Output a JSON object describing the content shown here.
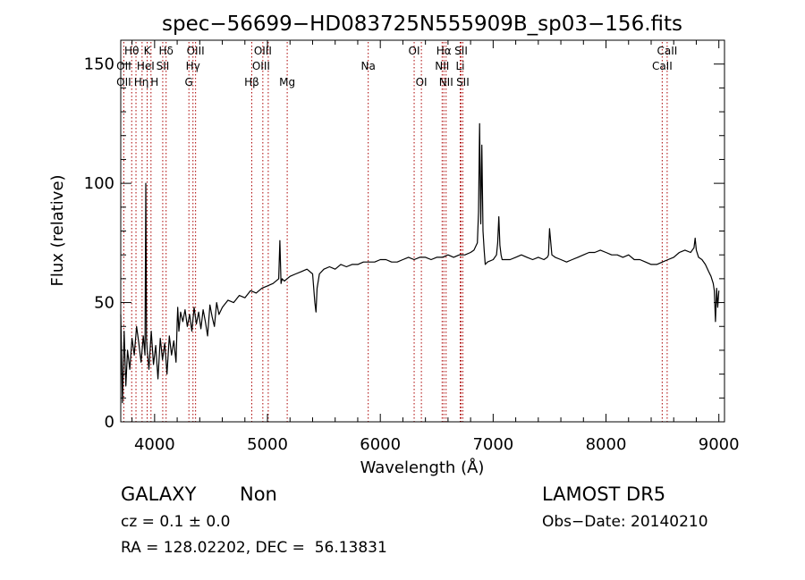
{
  "chart_data": {
    "type": "line",
    "title": "spec−56699−HD083725N555909B_sp03−156.fits",
    "xlabel": "Wavelength (Å)",
    "ylabel": "Flux (relative)",
    "xlim": [
      3700,
      9050
    ],
    "ylim": [
      0,
      160
    ],
    "xticks": [
      4000,
      5000,
      6000,
      7000,
      8000,
      9000
    ],
    "yticks": [
      0,
      50,
      100,
      150
    ],
    "grid": false,
    "series": [
      {
        "x": [
          3700,
          3715,
          3730,
          3745,
          3760,
          3780,
          3800,
          3820,
          3840,
          3860,
          3880,
          3900,
          3915,
          3922,
          3928,
          3935,
          3950,
          3970,
          3990,
          4010,
          4030,
          4050,
          4070,
          4090,
          4110,
          4130,
          4150,
          4170,
          4190,
          4200,
          4205,
          4215,
          4230,
          4250,
          4270,
          4290,
          4310,
          4330,
          4350,
          4370,
          4390,
          4410,
          4430,
          4450,
          4470,
          4490,
          4510,
          4530,
          4550,
          4570,
          4600,
          4650,
          4700,
          4750,
          4800,
          4850,
          4900,
          4950,
          5000,
          5050,
          5100,
          5110,
          5120,
          5130,
          5150,
          5200,
          5250,
          5300,
          5350,
          5400,
          5420,
          5430,
          5440,
          5460,
          5500,
          5550,
          5600,
          5650,
          5700,
          5750,
          5800,
          5850,
          5900,
          5950,
          6000,
          6050,
          6100,
          6150,
          6200,
          6250,
          6300,
          6350,
          6400,
          6450,
          6500,
          6550,
          6600,
          6650,
          6700,
          6750,
          6800,
          6830,
          6860,
          6870,
          6880,
          6890,
          6900,
          6910,
          6920,
          6930,
          6950,
          7000,
          7030,
          7040,
          7050,
          7060,
          7070,
          7080,
          7100,
          7150,
          7200,
          7250,
          7300,
          7350,
          7400,
          7450,
          7480,
          7490,
          7500,
          7520,
          7550,
          7600,
          7650,
          7700,
          7750,
          7800,
          7850,
          7900,
          7950,
          8000,
          8050,
          8100,
          8150,
          8200,
          8250,
          8300,
          8350,
          8400,
          8450,
          8500,
          8550,
          8600,
          8650,
          8700,
          8750,
          8780,
          8790,
          8800,
          8820,
          8850,
          8880,
          8910,
          8930,
          8950,
          8960,
          8970,
          8980,
          8990,
          9000
        ],
        "y": [
          45,
          8,
          38,
          15,
          30,
          22,
          35,
          28,
          40,
          33,
          25,
          36,
          28,
          100,
          35,
          30,
          22,
          38,
          24,
          32,
          18,
          35,
          26,
          33,
          20,
          36,
          28,
          34,
          25,
          42,
          48,
          38,
          46,
          42,
          47,
          40,
          45,
          38,
          48,
          41,
          46,
          39,
          47,
          42,
          36,
          49,
          44,
          40,
          50,
          45,
          48,
          51,
          50,
          53,
          52,
          55,
          54,
          56,
          57,
          58,
          60,
          76,
          58,
          60,
          59,
          61,
          62,
          63,
          64,
          62,
          50,
          46,
          56,
          62,
          64,
          65,
          64,
          66,
          65,
          66,
          66,
          67,
          67,
          67,
          68,
          68,
          67,
          67,
          68,
          69,
          68,
          69,
          69,
          68,
          69,
          69,
          70,
          69,
          70,
          70,
          71,
          72,
          75,
          88,
          125,
          83,
          116,
          80,
          72,
          66,
          67,
          68,
          70,
          75,
          86,
          74,
          70,
          68,
          68,
          68,
          69,
          70,
          69,
          68,
          69,
          68,
          69,
          70,
          81,
          70,
          69,
          68,
          67,
          68,
          69,
          70,
          71,
          71,
          72,
          71,
          70,
          70,
          69,
          70,
          68,
          68,
          67,
          66,
          66,
          67,
          68,
          69,
          71,
          72,
          71,
          73,
          77,
          72,
          69,
          68,
          66,
          63,
          61,
          58,
          55,
          42,
          56,
          48,
          55
        ]
      }
    ],
    "lines": [
      {
        "label": "OII",
        "wave": 3727,
        "row": 2,
        "dx": 0
      },
      {
        "label": "OII",
        "wave": 3727,
        "row": 3,
        "dx": 0
      },
      {
        "label": "Hθ",
        "wave": 3797,
        "row": 1,
        "dx": 0
      },
      {
        "label": "Hη",
        "wave": 3835,
        "row": 3,
        "dx": 6
      },
      {
        "label": "HeI",
        "wave": 3889,
        "row": 2,
        "dx": 4
      },
      {
        "label": "K",
        "wave": 3934,
        "row": 1,
        "dx": 0
      },
      {
        "label": "H",
        "wave": 3968,
        "row": 3,
        "dx": 4
      },
      {
        "label": "Hδ",
        "wave": 4102,
        "row": 1,
        "dx": 0
      },
      {
        "label": "SII",
        "wave": 4072,
        "row": 2,
        "dx": 0
      },
      {
        "label": "OIII",
        "wave": 4363,
        "row": 1,
        "dx": 0
      },
      {
        "label": "Hγ",
        "wave": 4340,
        "row": 2,
        "dx": 0
      },
      {
        "label": "G",
        "wave": 4304,
        "row": 3,
        "dx": 0
      },
      {
        "label": "OIII",
        "wave": 4959,
        "row": 1,
        "dx": 0
      },
      {
        "label": "OIII",
        "wave": 5007,
        "row": 2,
        "dx": -8
      },
      {
        "label": "Hβ",
        "wave": 4861,
        "row": 3,
        "dx": 0
      },
      {
        "label": "Mg",
        "wave": 5175,
        "row": 3,
        "dx": 0
      },
      {
        "label": "Na",
        "wave": 5893,
        "row": 2,
        "dx": 0
      },
      {
        "label": "OI",
        "wave": 6300,
        "row": 1,
        "dx": 0
      },
      {
        "label": "OI",
        "wave": 6364,
        "row": 3,
        "dx": 0
      },
      {
        "label": "Hα",
        "wave": 6563,
        "row": 1,
        "dx": 0
      },
      {
        "label": "NII",
        "wave": 6548,
        "row": 2,
        "dx": 0
      },
      {
        "label": "NII",
        "wave": 6583,
        "row": 3,
        "dx": 0
      },
      {
        "label": "SII",
        "wave": 6716,
        "row": 1,
        "dx": 0
      },
      {
        "label": "Li",
        "wave": 6708,
        "row": 2,
        "dx": 0
      },
      {
        "label": "SII",
        "wave": 6731,
        "row": 3,
        "dx": 0
      },
      {
        "label": "CaII",
        "wave": 8542,
        "row": 1,
        "dx": 0
      },
      {
        "label": "CaII",
        "wave": 8498,
        "row": 2,
        "dx": 0
      }
    ],
    "line_colors": {
      "spectrum": "#000000",
      "markers": "#aa0000"
    }
  },
  "footer": {
    "object_type": "GALAXY",
    "subclass": "Non",
    "survey": "LAMOST DR5",
    "cz": "cz = 0.1 ± 0.0",
    "obs_date": "Obs−Date: 20140210",
    "coords": "RA = 128.02202, DEC =  56.13831"
  }
}
